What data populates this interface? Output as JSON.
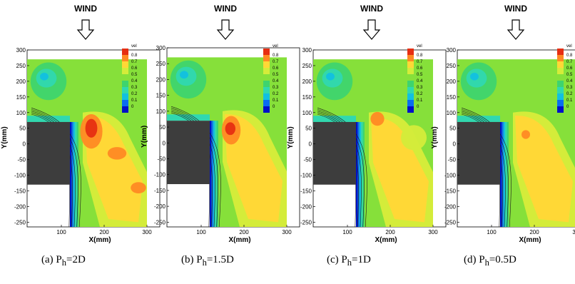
{
  "figure": {
    "wind_label": "WIND",
    "legend_title": "vel",
    "xlabel": "X(mm)",
    "ylabel": "Y(mm)",
    "x_ticks": [
      100,
      200,
      300
    ],
    "y_ticks": [
      300,
      250,
      200,
      150,
      100,
      50,
      0,
      -50,
      -100,
      -150,
      -200,
      -250
    ],
    "legend_levels": [
      "0.8",
      "0.7",
      "0.6",
      "0.5",
      "0.4",
      "0.3",
      "0.2",
      "0.1",
      "0"
    ],
    "colors": {
      "level_0": "#0010c8",
      "level_0_1": "#0a6df0",
      "level_0_2": "#12c0e0",
      "level_0_3": "#30d8b0",
      "level_0_4": "#3ed46e",
      "level_0_5": "#86e03a",
      "level_0_6": "#d4ec3a",
      "level_0_7": "#ffd836",
      "level_0_8": "#ff8a24",
      "level_max": "#e62e12",
      "obstacle": "#3d3d3d",
      "contour_line": "#1a1a1a"
    }
  },
  "panels": [
    {
      "id": "a",
      "caption_prefix": "(a) P",
      "caption_sub": "h",
      "caption_suffix": "=2D"
    },
    {
      "id": "b",
      "caption_prefix": "(b) P",
      "caption_sub": "h",
      "caption_suffix": "=1.5D"
    },
    {
      "id": "c",
      "caption_prefix": "(c) P",
      "caption_sub": "h",
      "caption_suffix": "=1D"
    },
    {
      "id": "d",
      "caption_prefix": "(d) P",
      "caption_sub": "h",
      "caption_suffix": "=0.5D"
    }
  ],
  "chart_data": [
    {
      "type": "heatmap",
      "title": "(a) Ph=2D",
      "xlabel": "X(mm)",
      "ylabel": "Y(mm)",
      "xlim": [
        20,
        330
      ],
      "ylim": [
        -265,
        300
      ],
      "colorbar_label": "vel",
      "colorbar_range": [
        0,
        0.8
      ],
      "obstacle": {
        "x": [
          20,
          120
        ],
        "y": [
          -130,
          70
        ]
      },
      "measurement_region": {
        "x": [
          120,
          300
        ],
        "y": [
          -265,
          270
        ],
        "upstream_x": [
          20,
          120
        ],
        "upstream_y": [
          90,
          270
        ]
      },
      "features": [
        {
          "region": "near-wake shear layer x=120-140",
          "vel": [
            0.1,
            0.4
          ]
        },
        {
          "region": "separation bubble x≈170 y≈50",
          "vel": 0.8
        },
        {
          "region": "x≈230 y≈-30",
          "vel": 0.8
        },
        {
          "region": "x≈280 y≈-140",
          "vel": 0.7
        },
        {
          "region": "upstream x≈60 y≈210",
          "vel": 0.3
        },
        {
          "region": "far field",
          "vel": 0.5
        }
      ]
    },
    {
      "type": "heatmap",
      "title": "(b) Ph=1.5D",
      "xlabel": "X(mm)",
      "ylabel": "Y(mm)",
      "xlim": [
        20,
        330
      ],
      "ylim": [
        -265,
        300
      ],
      "colorbar_label": "vel",
      "colorbar_range": [
        0,
        0.8
      ],
      "obstacle": {
        "x": [
          20,
          120
        ],
        "y": [
          -130,
          70
        ]
      },
      "features": [
        {
          "region": "separation bubble x≈170 y≈40",
          "vel": 0.8
        },
        {
          "region": "downstream x≈250 y≈-150",
          "vel": 0.6
        },
        {
          "region": "upstream x≈60 y≈210",
          "vel": 0.3
        },
        {
          "region": "far field",
          "vel": 0.5
        }
      ]
    },
    {
      "type": "heatmap",
      "title": "(c) Ph=1D",
      "xlabel": "X(mm)",
      "ylabel": "Y(mm)",
      "xlim": [
        20,
        330
      ],
      "ylim": [
        -265,
        300
      ],
      "colorbar_label": "vel",
      "colorbar_range": [
        0,
        0.8
      ],
      "obstacle": {
        "x": [
          20,
          120
        ],
        "y": [
          -130,
          70
        ]
      },
      "features": [
        {
          "region": "x≈170 y≈80",
          "vel": 0.8
        },
        {
          "region": "downstream x≈250 y≈-100",
          "vel": 0.6
        },
        {
          "region": "upstream x≈70 y≈190",
          "vel": 0.4
        },
        {
          "region": "far field",
          "vel": 0.5
        }
      ]
    },
    {
      "type": "heatmap",
      "title": "(d) Ph=0.5D",
      "xlabel": "X(mm)",
      "ylabel": "Y(mm)",
      "xlim": [
        20,
        330
      ],
      "ylim": [
        -265,
        300
      ],
      "colorbar_label": "vel",
      "colorbar_range": [
        0,
        0.8
      ],
      "obstacle": {
        "x": [
          20,
          120
        ],
        "y": [
          -130,
          70
        ]
      },
      "features": [
        {
          "region": "x≈180 y≈30",
          "vel": 0.7
        },
        {
          "region": "downstream x≈250 y≈-150",
          "vel": 0.6
        },
        {
          "region": "upstream x≈70 y≈210",
          "vel": 0.3
        },
        {
          "region": "far field",
          "vel": 0.5
        }
      ]
    }
  ]
}
